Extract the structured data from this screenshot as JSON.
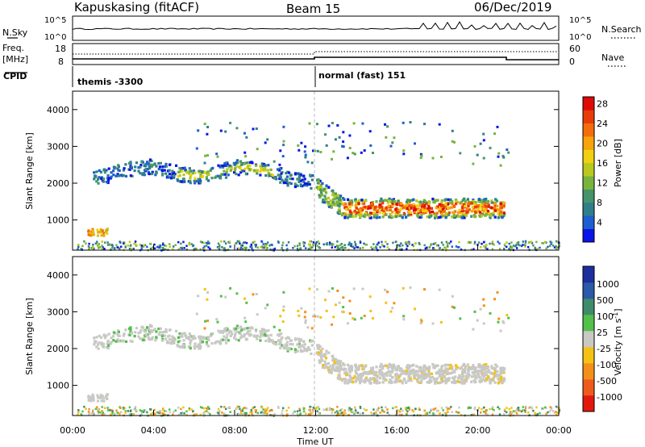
{
  "header": {
    "station": "Kapuskasing (fitACF)",
    "beam": "Beam 15",
    "date": "06/Dec/2019"
  },
  "status_panels": {
    "nsky_label": "N.Sky",
    "nsearch_label": "N.Search",
    "nsky_ticks": [
      "10^5",
      "10^0"
    ],
    "freq_label": "Freq.",
    "freq_unit": "[MHz]",
    "freq_ticks": [
      "18",
      "8"
    ],
    "nave_label": "Nave",
    "nave_ticks": [
      "60",
      "0"
    ],
    "cpid_label": "CPID",
    "cpid_segments": [
      {
        "name": "themis -3300",
        "start_hour": 0
      },
      {
        "name": "normal (fast) 151",
        "start_hour": 12
      }
    ]
  },
  "time_axis": {
    "label": "Time UT",
    "ticks": [
      "00:00",
      "04:00",
      "08:00",
      "12:00",
      "16:00",
      "20:00",
      "00:00"
    ],
    "tick_hours": [
      0,
      4,
      8,
      12,
      16,
      20,
      24
    ]
  },
  "chart_data": [
    {
      "type": "heatmap",
      "name": "power",
      "ylabel": "Slant Range [km]",
      "ylim": [
        180,
        4500
      ],
      "xlim_hours": [
        0,
        24
      ],
      "y_ticks": [
        1000,
        2000,
        3000,
        4000
      ],
      "colorbar": {
        "label": "Power [dB]",
        "ticks": [
          "4",
          "8",
          "12",
          "16",
          "20",
          "24",
          "28"
        ],
        "colors": [
          "#0a14e6",
          "#1d5ed0",
          "#2e7f8a",
          "#46946a",
          "#78b43c",
          "#b8c81e",
          "#f0d010",
          "#f7a30c",
          "#f56d0a",
          "#e93b08",
          "#dd0a06"
        ]
      }
    },
    {
      "type": "heatmap",
      "name": "velocity",
      "ylabel": "Slant Range [km]",
      "ylim": [
        180,
        4500
      ],
      "xlim_hours": [
        0,
        24
      ],
      "y_ticks": [
        1000,
        2000,
        3000,
        4000
      ],
      "colorbar": {
        "label": "Velocity [m s",
        "ticks": [
          "1000",
          "500",
          "100",
          "25",
          "-25",
          "-100",
          "-500",
          "-1000"
        ],
        "colors": [
          "#1c2f9f",
          "#2c59a8",
          "#3e8c6a",
          "#52c04a",
          "#c8c8c4",
          "#f4c214",
          "#f4901a",
          "#ee5a1c",
          "#e2180e"
        ]
      }
    }
  ]
}
